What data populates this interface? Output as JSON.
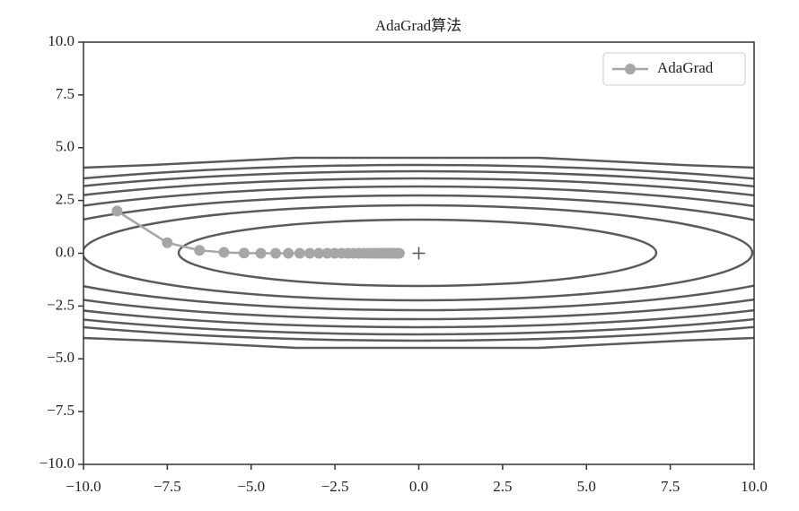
{
  "chart_data": {
    "type": "line",
    "title": "AdaGrad算法",
    "series": [
      {
        "name": "AdaGrad",
        "color": "#a6a6a6",
        "x": [
          -9,
          -7.5,
          -6.54,
          -5.81,
          -5.21,
          -4.71,
          -4.27,
          -3.89,
          -3.55,
          -3.25,
          -2.98,
          -2.73,
          -2.51,
          -2.3,
          -2.12,
          -1.95,
          -1.79,
          -1.65,
          -1.52,
          -1.4,
          -1.29,
          -1.19,
          -1.1,
          -1.01,
          -0.93,
          -0.86,
          -0.79,
          -0.73,
          -0.68,
          -0.62,
          -0.58
        ],
        "values": [
          2,
          0.5,
          0.14,
          0.04,
          0.01,
          0,
          0,
          0,
          0,
          0,
          0,
          0,
          0,
          0,
          0,
          0,
          0,
          0,
          0,
          0,
          0,
          0,
          0,
          0,
          0,
          0,
          0,
          0,
          0,
          0,
          0
        ]
      }
    ],
    "minimum_point": {
      "x": 0,
      "y": 0,
      "color": "#555555"
    },
    "xlim": [
      -10,
      10
    ],
    "ylim": [
      -10,
      10
    ],
    "xticks": [
      {
        "value": -10,
        "label": "−10.0"
      },
      {
        "value": -7.5,
        "label": "−7.5"
      },
      {
        "value": -5,
        "label": "−5.0"
      },
      {
        "value": -2.5,
        "label": "−2.5"
      },
      {
        "value": 0,
        "label": "0.0"
      },
      2.5,
      {
        "value": 5,
        "label": "5.0"
      },
      7.5,
      {
        "value": 10,
        "label": "10.0"
      }
    ],
    "yticks": [
      {
        "value": -10,
        "label": "−10.0"
      },
      {
        "value": -7.5,
        "label": "−7.5"
      },
      {
        "value": -5,
        "label": "−5.0"
      },
      {
        "value": -2.5,
        "label": "−2.5"
      },
      {
        "value": 0,
        "label": "0.0"
      },
      2.5,
      {
        "value": 5,
        "label": "5.0"
      },
      7.5,
      {
        "value": 10,
        "label": "10.0"
      }
    ],
    "legend": "upper right"
  }
}
